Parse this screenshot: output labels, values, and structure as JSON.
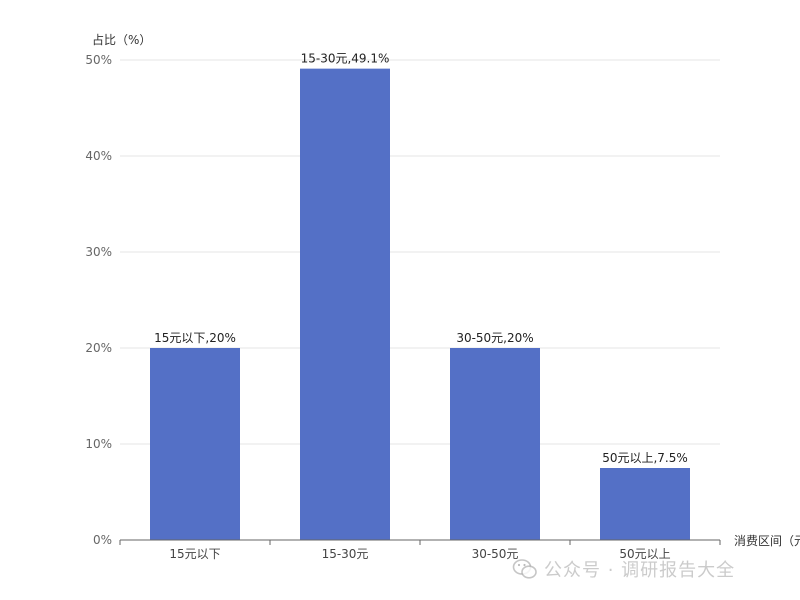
{
  "chart_data": {
    "type": "bar",
    "ylabel": "占比（%）",
    "xlabel": "消费区间（元",
    "ylim": [
      0,
      50
    ],
    "y_ticks": [
      "0%",
      "10%",
      "20%",
      "30%",
      "40%",
      "50%"
    ],
    "grid": true,
    "categories": [
      "15元以下",
      "15-30元",
      "30-50元",
      "50元以上"
    ],
    "values": [
      20,
      49.1,
      20,
      7.5
    ],
    "data_labels": [
      "15元以下,20%",
      "15-30元,49.1%",
      "30-50元,20%",
      "50元以上,7.5%"
    ],
    "bar_color": "#5470c6"
  },
  "watermark": {
    "text": "公众号 · 调研报告大全",
    "icon": "wechat-icon"
  }
}
